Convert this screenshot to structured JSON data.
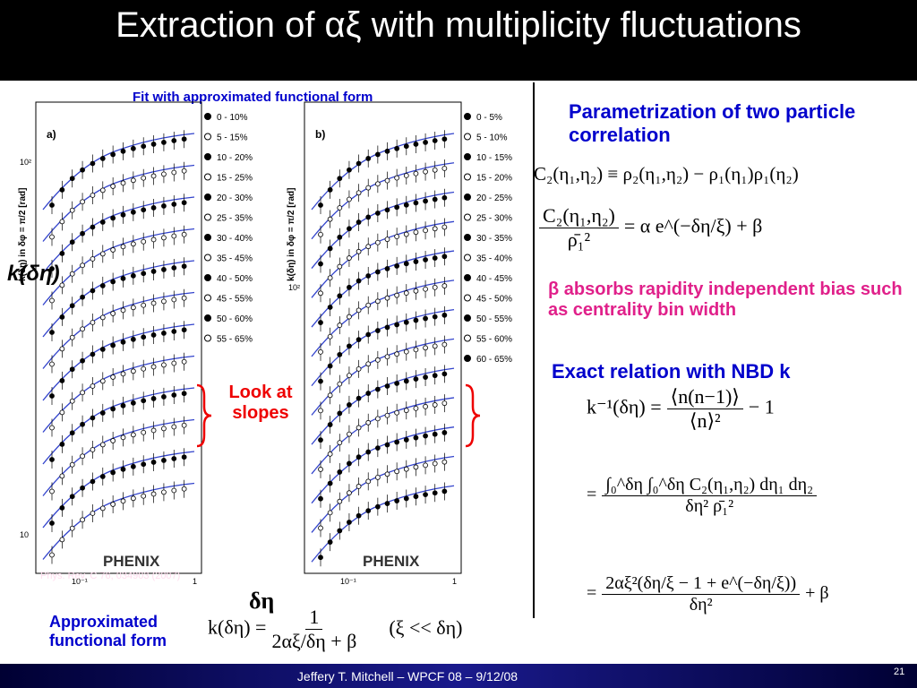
{
  "title": "Extraction of αξ with multiplicity fluctuations",
  "figure": {
    "caption": "Fit with approximated functional form",
    "y_label": "k(δη)",
    "x_label": "δη",
    "axis_label": "k(δη) in δφ = π/2 [rad]",
    "logo": "PHENIX",
    "citation": "Phys. Rev. C 76, 034903 (2007)",
    "panels": [
      {
        "label": "a)",
        "ticks": [
          "10²",
          "10",
          "10⁻¹",
          "1"
        ],
        "legend": [
          "0 - 10%",
          "5 - 15%",
          "10 - 20%",
          "15 - 25%",
          "20 - 30%",
          "25 - 35%",
          "30 - 40%",
          "35 - 45%",
          "40 - 50%",
          "45 - 55%",
          "50 - 60%",
          "55 - 65%"
        ]
      },
      {
        "label": "b)",
        "ticks": [
          "10²",
          "10⁻¹",
          "1"
        ],
        "legend": [
          "0 - 5%",
          "5 - 10%",
          "10 - 15%",
          "15 - 20%",
          "20 - 25%",
          "25 - 30%",
          "30 - 35%",
          "35 - 40%",
          "40 - 45%",
          "45 - 50%",
          "50 - 55%",
          "55 - 60%",
          "60 - 65%"
        ]
      }
    ],
    "annotation": "Look at slopes"
  },
  "right": {
    "heading": "Parametrization of two particle correlation",
    "eq1": "C₂(η₁,η₂) ≡ ρ₂(η₁,η₂) − ρ₁(η₁)ρ₁(η₂)",
    "eq2": {
      "num": "C₂(η₁,η₂)",
      "den": "ρ̄₁²",
      "rhs": "= α e^(−δη/ξ) + β"
    },
    "beta_note": "β absorbs rapidity independent bias such as centrality bin width",
    "nbd_heading": "Exact relation with NBD k",
    "eq3": {
      "lhs": "k⁻¹(δη) =",
      "num": "⟨n(n−1)⟩",
      "den": "⟨n⟩²",
      "rhs": "− 1"
    },
    "eq4": {
      "lhs": "=",
      "num": "∫₀^δη ∫₀^δη C₂(η₁,η₂) dη₁ dη₂",
      "den": "δη² ρ̄₁²"
    },
    "eq5": {
      "lhs": "=",
      "num": "2αξ²(δη/ξ − 1 + e^(−δη/ξ))",
      "den": "δη²",
      "rhs": "+ β"
    }
  },
  "bottom": {
    "label": "Approximated functional form",
    "eq": {
      "lhs": "k(δη) =",
      "num": "1",
      "den": "2αξ/δη + β",
      "cond": "(ξ << δη)"
    }
  },
  "footer": {
    "text": "Jeffery T. Mitchell – WPCF 08 – 9/12/08",
    "page": "21"
  }
}
